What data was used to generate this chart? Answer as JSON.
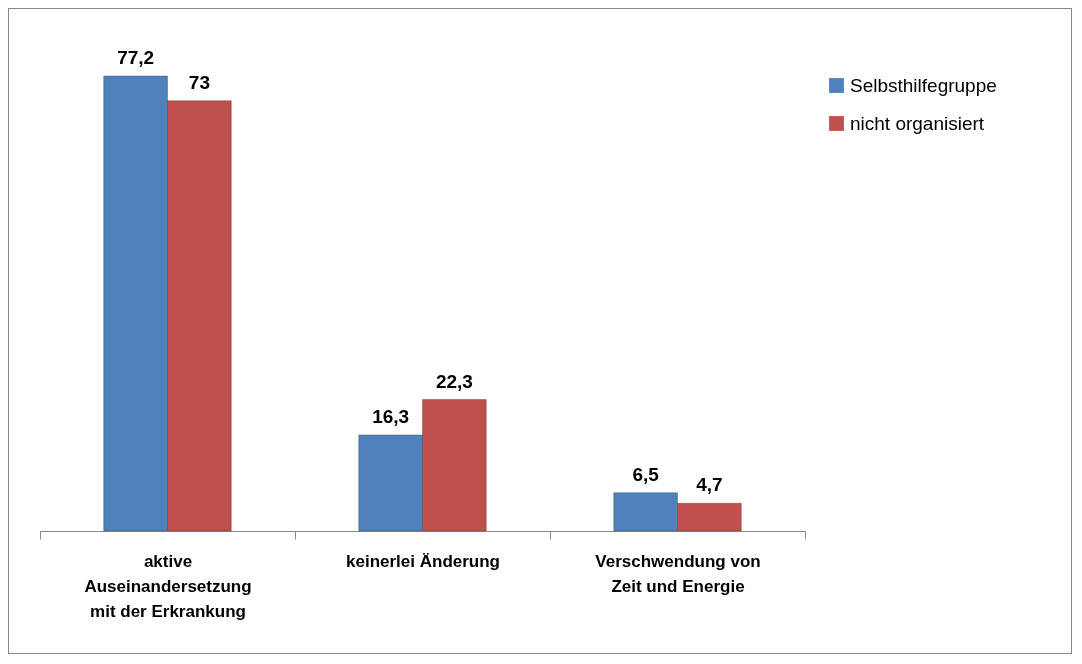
{
  "chart_data": {
    "type": "bar",
    "categories": [
      "aktive Auseinandersetzung mit der Erkrankung",
      "keinerlei Änderung",
      "Verschwendung von Zeit und Energie"
    ],
    "series": [
      {
        "name": "Selbsthilfegruppe",
        "color": "#4f81bd",
        "values": [
          77.2,
          16.3,
          6.5
        ],
        "value_labels": [
          "77,2",
          "16,3",
          "6,5"
        ]
      },
      {
        "name": "nicht organisiert",
        "color": "#c0504d",
        "values": [
          73,
          22.3,
          4.7
        ],
        "value_labels": [
          "73",
          "22,3",
          "4,7"
        ]
      }
    ],
    "legend": "right",
    "grid": false
  }
}
